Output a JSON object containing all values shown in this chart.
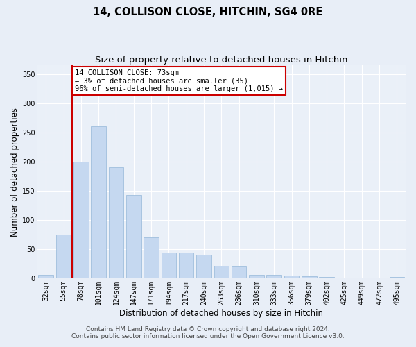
{
  "title": "14, COLLISON CLOSE, HITCHIN, SG4 0RE",
  "subtitle": "Size of property relative to detached houses in Hitchin",
  "xlabel": "Distribution of detached houses by size in Hitchin",
  "ylabel": "Number of detached properties",
  "categories": [
    "32sqm",
    "55sqm",
    "78sqm",
    "101sqm",
    "124sqm",
    "147sqm",
    "171sqm",
    "194sqm",
    "217sqm",
    "240sqm",
    "263sqm",
    "286sqm",
    "310sqm",
    "333sqm",
    "356sqm",
    "379sqm",
    "402sqm",
    "425sqm",
    "449sqm",
    "472sqm",
    "495sqm"
  ],
  "values": [
    6,
    75,
    200,
    260,
    190,
    143,
    70,
    44,
    44,
    40,
    21,
    20,
    6,
    6,
    5,
    3,
    2,
    1,
    1,
    0,
    2
  ],
  "bar_color": "#c5d8f0",
  "bar_edge_color": "#a0bedd",
  "vline_x": 1.5,
  "vline_color": "#cc0000",
  "annotation_text": "14 COLLISON CLOSE: 73sqm\n← 3% of detached houses are smaller (35)\n96% of semi-detached houses are larger (1,015) →",
  "annotation_box_color": "#ffffff",
  "annotation_box_edge": "#cc0000",
  "ylim": [
    0,
    365
  ],
  "yticks": [
    0,
    50,
    100,
    150,
    200,
    250,
    300,
    350
  ],
  "bg_color": "#e8eef7",
  "plot_bg_color": "#eaf0f8",
  "grid_color": "#ffffff",
  "footer_line1": "Contains HM Land Registry data © Crown copyright and database right 2024.",
  "footer_line2": "Contains public sector information licensed under the Open Government Licence v3.0.",
  "title_fontsize": 10.5,
  "subtitle_fontsize": 9.5,
  "xlabel_fontsize": 8.5,
  "ylabel_fontsize": 8.5,
  "annot_fontsize": 7.5,
  "tick_fontsize": 7,
  "footer_fontsize": 6.5
}
